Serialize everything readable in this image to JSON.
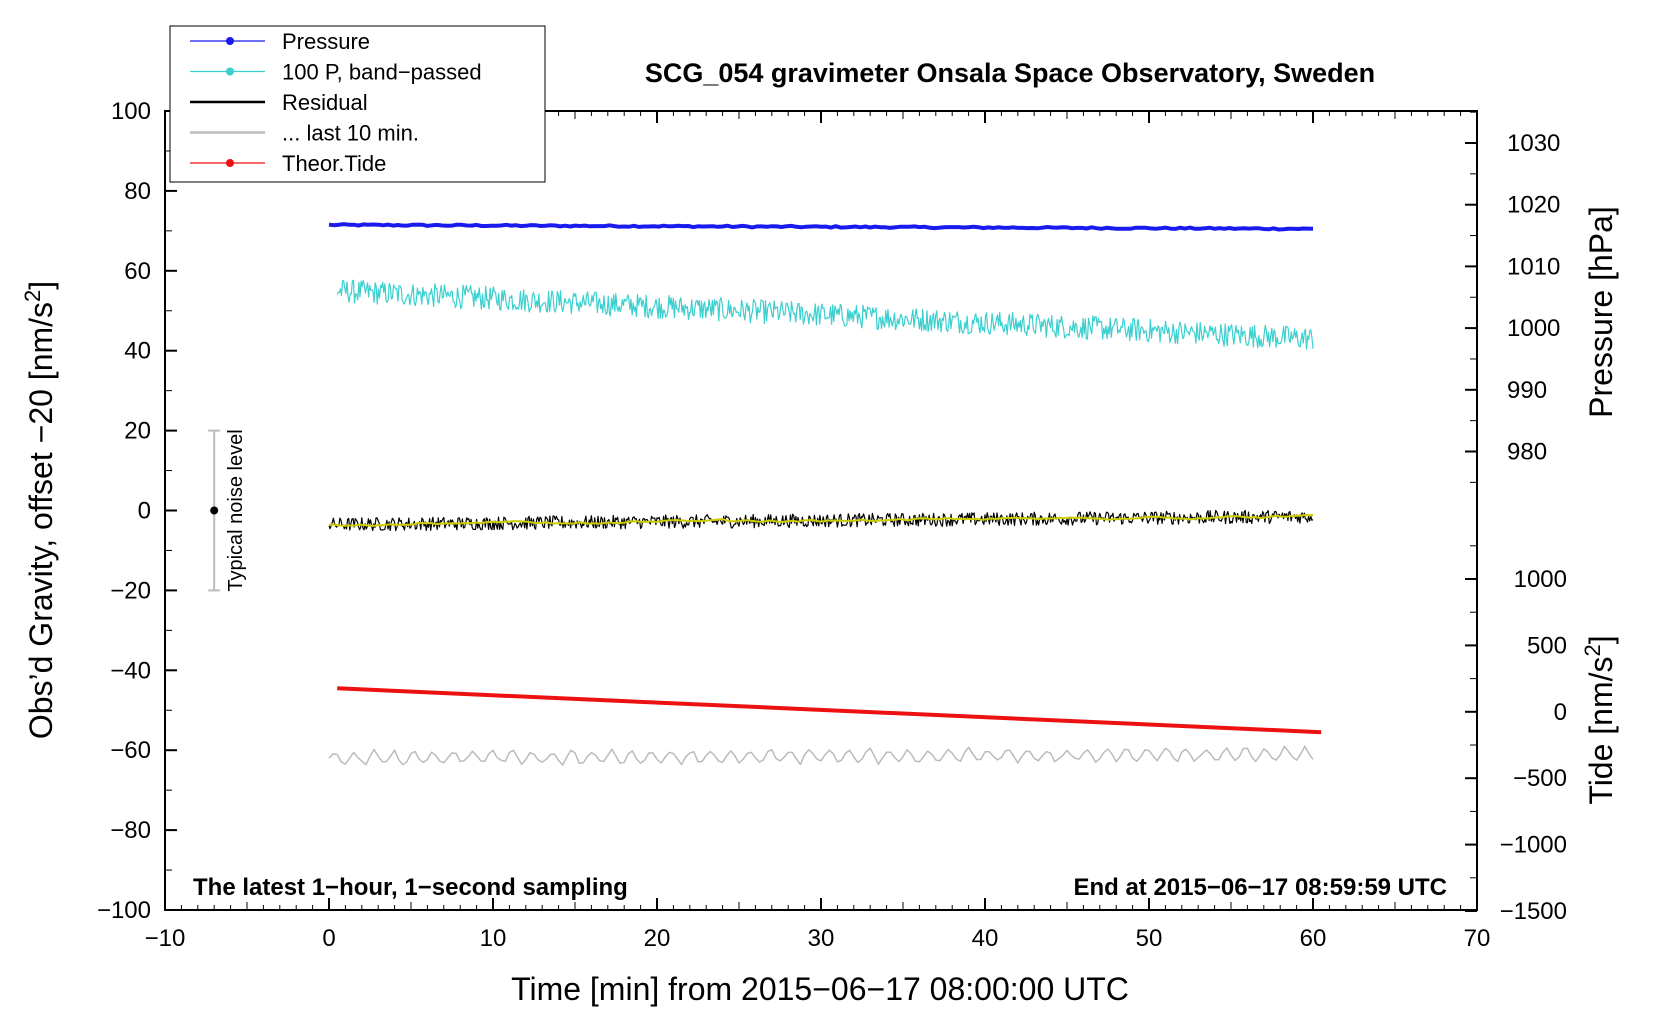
{
  "chart_data": {
    "type": "line",
    "title": "SCG_054 gravimeter Onsala Space Observatory, Sweden",
    "xlabel": "Time [min] from 2015−06−17 08:00:00 UTC",
    "ylabel_left": "Obs’d Gravity, offset −20 [nm/s",
    "ylabel_left_sup": "2",
    "ylabel_left_end": "]",
    "ylabel_right_pressure": "Pressure [hPa]",
    "ylabel_right_tide": "Tide [nm/s",
    "ylabel_right_tide_sup": "2",
    "ylabel_right_tide_end": "]",
    "xlim": [
      -10,
      70
    ],
    "ylim_left": [
      -100,
      100
    ],
    "x_ticks": [
      "−10",
      "0",
      "10",
      "20",
      "30",
      "40",
      "50",
      "60",
      "70"
    ],
    "y_ticks_left": [
      "100",
      "80",
      "60",
      "40",
      "20",
      "0",
      "−20",
      "−40",
      "−60",
      "−80",
      "−100"
    ],
    "pressure_axis": {
      "ticks": [
        "1030",
        "1020",
        "1010",
        "1000",
        "990",
        "980"
      ]
    },
    "tide_axis": {
      "ticks": [
        "1000",
        "500",
        "0",
        "−500",
        "−1000",
        "−1500"
      ]
    },
    "legend": {
      "placement": "top-left",
      "entries": [
        {
          "label": "Pressure",
          "color": "#1a1aee",
          "marker": true
        },
        {
          "label": "100 P, band−passed",
          "color": "#3ccfcf",
          "marker": true
        },
        {
          "label": "Residual",
          "color": "#000000",
          "marker": false
        },
        {
          "label": "... last 10 min.",
          "color": "#bbbbbb",
          "marker": false
        },
        {
          "label": "Theor.Tide",
          "color": "#ee1111",
          "marker": true
        }
      ]
    },
    "series": [
      {
        "name": "Pressure",
        "color": "#1a1aee",
        "x_range": [
          0,
          60
        ],
        "y_start": 71.5,
        "y_end": 70.5,
        "noise": 0.2
      },
      {
        "name": "100 P, band−passed",
        "color": "#3ccfcf",
        "x_range": [
          0.5,
          60
        ],
        "y_start": 55,
        "y_end": 43,
        "noise": 3
      },
      {
        "name": "Residual",
        "color": "#000000",
        "x_range": [
          0,
          60
        ],
        "y_start": -3.5,
        "y_end": -1.5,
        "noise": 1.7
      },
      {
        "name": "Residual smoothed",
        "color": "#cccc00",
        "x_range": [
          0,
          60
        ],
        "y_start": -3.5,
        "y_end": -1.5,
        "noise": 0.4
      },
      {
        "name": "... last 10 min.",
        "color": "#bbbbbb",
        "x_range": [
          0,
          60
        ],
        "y_start": -62,
        "y_end": -61,
        "noise": 1.8
      },
      {
        "name": "Theor.Tide",
        "color": "#ee1111",
        "x_range": [
          0.5,
          60.5
        ],
        "y_start": -44.5,
        "y_end": -55.5,
        "noise": 0
      }
    ],
    "noise_bar": {
      "label": "Typical noise level",
      "x": -7,
      "y_center": 0,
      "y_low": -20,
      "y_high": 20
    },
    "annotations": {
      "bottom_left": "The latest 1−hour, 1−second sampling",
      "bottom_right": "End at 2015−06−17 08:59:59 UTC"
    }
  }
}
